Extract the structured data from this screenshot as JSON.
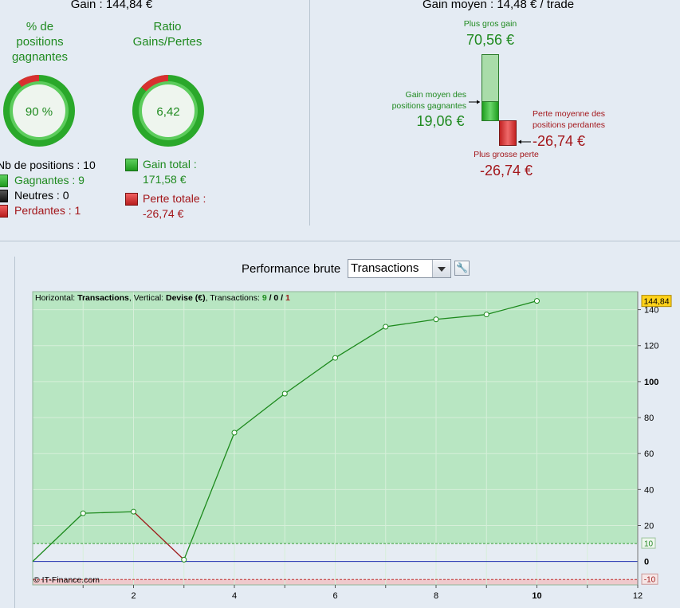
{
  "header": {
    "gain": "Gain : 144,84 €",
    "gain_moyen": "Gain moyen : 14,48 € / trade"
  },
  "ring_positions": {
    "title_line1": "% de",
    "title_line2": "positions",
    "title_line3": "gagnantes",
    "value_text": "90 %",
    "fraction": 0.9
  },
  "ring_ratio": {
    "title_line1": "Ratio",
    "title_line2": "Gains/Pertes",
    "value_text": "6,42",
    "fraction": 0.8652
  },
  "positions": {
    "count": "Nb de positions : 10",
    "gagnantes": "Gagnantes : 9",
    "neutres": "Neutres : 0",
    "perdantes": "Perdantes : 1"
  },
  "totals": {
    "gain_label": "Gain total :",
    "gain_value": "171,58 €",
    "perte_label": "Perte totale :",
    "perte_value": "-26,74 €"
  },
  "gain_moyen_panel": {
    "plus_gros_gain_label": "Plus gros gain",
    "plus_gros_gain_value": "70,56 €",
    "gain_moyen_line1": "Gain moyen des",
    "gain_moyen_line2": "positions gagnantes",
    "gain_moyen_value": "19,06 €",
    "perte_moyenne_line1": "Perte moyenne des",
    "perte_moyenne_line2": "positions perdantes",
    "perte_moyenne_value": "-26,74 €",
    "plus_grosse_perte_label": "Plus grosse perte",
    "plus_grosse_perte_value": "-26,74 €"
  },
  "performance": {
    "label": "Performance brute",
    "selected": "Transactions",
    "settings_icon": "wrench-icon"
  },
  "chart_data": {
    "type": "line",
    "info": {
      "h_label": "Horizontal: ",
      "h_value": "Transactions",
      "v_label": ", Vertical: ",
      "v_value": "Devise (€)",
      "t_label": ", Transactions: ",
      "t_win": "9",
      "sep": " / ",
      "t_neutral": "0",
      "t_loss": "1"
    },
    "watermark": "© IT-Finance.com",
    "x": [
      0,
      1,
      2,
      3,
      4,
      5,
      6,
      7,
      8,
      9,
      10
    ],
    "y": [
      0,
      26.8,
      27.7,
      1.0,
      71.6,
      93.3,
      113.2,
      130.5,
      134.6,
      137.3,
      144.84
    ],
    "xlim": [
      0,
      12
    ],
    "ylim": [
      -13,
      150
    ],
    "x_ticks": [
      "2",
      "4",
      "6",
      "8",
      "10",
      "12"
    ],
    "x_tick_values": [
      2,
      4,
      6,
      8,
      10,
      12
    ],
    "y_ticks": [
      "20",
      "40",
      "60",
      "80",
      "100",
      "120",
      "140"
    ],
    "y_tick_values": [
      20,
      40,
      60,
      80,
      100,
      120,
      140
    ],
    "zero_label": "0",
    "band_upper": 10,
    "band_lower": -10,
    "band_upper_label": "10",
    "band_lower_label": "-10",
    "last_value_label": "144,84",
    "colors": {
      "gain": "#1d8a1d",
      "loss": "#9e1c1c",
      "zero": "#2030b0",
      "bg_green": "#b8e6c2"
    }
  }
}
